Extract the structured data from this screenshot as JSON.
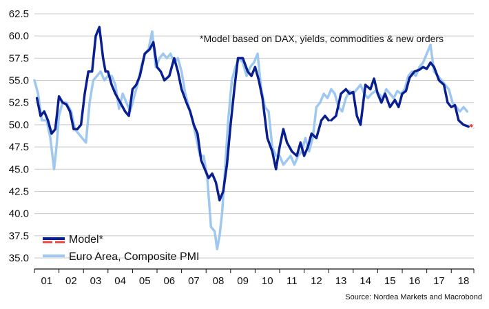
{
  "chart_data": {
    "type": "line",
    "title": "",
    "xlabel": "",
    "ylabel": "",
    "ylim": [
      35,
      62.5
    ],
    "yticks": [
      "62.5",
      "60.0",
      "57.5",
      "55.0",
      "52.5",
      "50.0",
      "47.5",
      "45.0",
      "42.5",
      "40.0",
      "37.5",
      "35.0"
    ],
    "ytick_values": [
      62.5,
      60,
      57.5,
      55,
      52.5,
      50,
      47.5,
      45,
      42.5,
      40,
      37.5,
      35
    ],
    "xlim": [
      2001.0,
      2018.92
    ],
    "xticks": [
      "01",
      "02",
      "03",
      "04",
      "05",
      "06",
      "07",
      "08",
      "09",
      "10",
      "11",
      "12",
      "13",
      "14",
      "15",
      "16",
      "17",
      "18"
    ],
    "grid": true,
    "legend_position": "bottom-left",
    "annotation": "*Model based on DAX, yields, commodities & new orders",
    "source": "Source: Nordea Markets and Macrobond",
    "series": [
      {
        "name": "Model*",
        "color": "#0a1f8f",
        "x": [
          2001.1,
          2001.25,
          2001.4,
          2001.55,
          2001.7,
          2001.85,
          2002.0,
          2002.15,
          2002.3,
          2002.45,
          2002.6,
          2002.75,
          2002.9,
          2003.05,
          2003.2,
          2003.35,
          2003.5,
          2003.65,
          2003.8,
          2003.9,
          2004.0,
          2004.15,
          2004.3,
          2004.5,
          2004.7,
          2004.85,
          2005.0,
          2005.15,
          2005.3,
          2005.5,
          2005.7,
          2005.85,
          2006.0,
          2006.15,
          2006.3,
          2006.5,
          2006.7,
          2006.85,
          2007.0,
          2007.2,
          2007.35,
          2007.5,
          2007.65,
          2007.8,
          2007.95,
          2008.1,
          2008.25,
          2008.4,
          2008.55,
          2008.7,
          2008.85,
          2009.0,
          2009.15,
          2009.3,
          2009.5,
          2009.7,
          2009.85,
          2010.0,
          2010.15,
          2010.3,
          2010.5,
          2010.7,
          2010.85,
          2011.0,
          2011.15,
          2011.3,
          2011.5,
          2011.7,
          2011.85,
          2012.0,
          2012.15,
          2012.3,
          2012.5,
          2012.7,
          2012.85,
          2013.0
        ],
        "values": [
          53.0,
          51.0,
          51.5,
          50.5,
          49.0,
          49.5,
          53.2,
          52.5,
          52.3,
          51.5,
          49.5,
          49.5,
          50.0,
          53.5,
          56.0,
          56.0,
          60.0,
          61.0,
          57.5,
          56.0,
          56.0,
          54.5,
          53.5,
          52.5,
          51.5,
          51.0,
          54.0,
          54.5,
          55.5,
          58.0,
          58.5,
          59.3,
          56.5,
          56.0,
          55.0,
          55.5,
          57.5,
          56.0,
          54.0,
          52.5,
          51.5,
          50.0,
          49.0,
          46.0,
          45.0,
          44.0,
          44.5,
          43.5,
          41.5,
          42.5,
          45.5,
          50.0,
          54.0,
          57.5,
          57.5,
          56.0,
          55.5,
          56.5,
          55.0,
          53.0,
          48.5,
          47.0,
          45.0,
          47.5,
          49.5,
          48.0,
          47.0,
          46.5,
          48.0,
          46.5,
          47.5,
          49.0,
          48.5,
          50.5,
          51.0,
          50.5
        ],
        "x2": [
          2013.1,
          2013.3,
          2013.5,
          2013.7,
          2013.85,
          2014.0,
          2014.15,
          2014.3,
          2014.5,
          2014.7,
          2014.85,
          2015.0,
          2015.15,
          2015.3,
          2015.5,
          2015.7,
          2015.85,
          2016.0,
          2016.15,
          2016.3,
          2016.5,
          2016.7,
          2016.85,
          2017.0,
          2017.15,
          2017.3,
          2017.5,
          2017.7,
          2017.85,
          2018.0,
          2018.15,
          2018.3,
          2018.5,
          2018.7
        ],
        "values2": [
          50.5,
          51.0,
          53.5,
          54.0,
          53.5,
          53.7,
          51.0,
          50.0,
          54.5,
          54.0,
          55.2,
          53.5,
          52.5,
          53.5,
          52.0,
          52.8,
          52.0,
          53.5,
          53.8,
          55.3,
          56.0,
          56.2,
          56.5,
          56.3,
          57.0,
          56.5,
          55.0,
          54.5,
          52.5,
          52.0,
          52.2,
          50.5,
          50.0,
          49.8
        ],
        "forecast": {
          "x": [
            2018.78,
            2018.92
          ],
          "values": [
            50.0,
            49.6
          ],
          "color": "#e8423a"
        }
      },
      {
        "name": "Euro Area, Composite PMI",
        "color": "#9ec8f0",
        "x": [
          2001.0,
          2001.15,
          2001.3,
          2001.5,
          2001.65,
          2001.8,
          2001.9,
          2002.0,
          2002.15,
          2002.3,
          2002.5,
          2002.65,
          2002.8,
          2002.95,
          2003.1,
          2003.25,
          2003.4,
          2003.55,
          2003.7,
          2003.85,
          2004.0,
          2004.15,
          2004.3,
          2004.45,
          2004.6,
          2004.75,
          2004.9,
          2005.05,
          2005.2,
          2005.35,
          2005.5,
          2005.65,
          2005.8,
          2005.95,
          2006.1,
          2006.25,
          2006.4,
          2006.55,
          2006.7,
          2006.85,
          2007.0,
          2007.15,
          2007.3,
          2007.45,
          2007.6,
          2007.75,
          2007.9,
          2008.05,
          2008.2,
          2008.35,
          2008.45,
          2008.55,
          2008.65,
          2008.75,
          2008.9,
          2009.05,
          2009.2,
          2009.35,
          2009.5,
          2009.65,
          2009.8,
          2009.95,
          2010.1,
          2010.25,
          2010.4,
          2010.55,
          2010.7,
          2010.85,
          2011.0,
          2011.15,
          2011.3,
          2011.45,
          2011.6,
          2011.75,
          2011.9,
          2012.05,
          2012.2,
          2012.35,
          2012.5,
          2012.65,
          2012.8,
          2012.95,
          2013.1,
          2013.25,
          2013.4,
          2013.55,
          2013.7,
          2013.85,
          2014.0,
          2014.15,
          2014.3,
          2014.45,
          2014.6,
          2014.75,
          2014.9,
          2015.05,
          2015.2,
          2015.35,
          2015.5,
          2015.65,
          2015.8,
          2015.95,
          2016.1,
          2016.25,
          2016.4,
          2016.55,
          2016.7,
          2016.85,
          2017.0,
          2017.15,
          2017.3,
          2017.45,
          2017.6,
          2017.75,
          2017.9,
          2018.05,
          2018.2,
          2018.35,
          2018.5,
          2018.65
        ],
        "values": [
          55.0,
          53.5,
          50.5,
          50.5,
          48.5,
          45.0,
          47.5,
          51.0,
          52.5,
          52.5,
          51.5,
          49.5,
          49.0,
          48.5,
          48.0,
          52.5,
          55.0,
          55.5,
          56.0,
          55.0,
          55.5,
          55.5,
          54.5,
          51.8,
          53.5,
          52.5,
          51.5,
          53.0,
          54.5,
          56.5,
          58.0,
          58.5,
          60.5,
          56.5,
          57.5,
          58.0,
          57.5,
          58.0,
          57.0,
          57.5,
          56.0,
          53.5,
          52.0,
          50.5,
          48.5,
          46.5,
          46.5,
          44.0,
          38.5,
          38.0,
          36.0,
          37.5,
          40.0,
          44.0,
          50.5,
          55.0,
          56.5,
          57.5,
          57.0,
          55.5,
          56.5,
          57.0,
          58.0,
          54.0,
          52.0,
          51.5,
          47.5,
          46.5,
          46.5,
          45.5,
          46.0,
          46.5,
          45.5,
          46.5,
          47.0,
          48.5,
          47.0,
          48.5,
          52.0,
          52.5,
          53.5,
          53.0,
          54.0,
          53.5,
          52.0,
          51.5,
          53.0,
          53.8,
          53.5,
          54.0,
          54.5,
          53.5,
          53.0,
          53.5,
          53.8,
          53.5,
          53.0,
          54.0,
          53.5,
          53.0,
          53.8,
          53.5,
          54.0,
          55.5,
          56.0,
          55.5,
          56.5,
          57.0,
          58.0,
          59.0,
          56.0,
          55.5,
          55.0,
          54.5,
          54.0,
          52.5,
          52.0,
          51.5,
          52.0,
          51.5
        ]
      }
    ]
  }
}
